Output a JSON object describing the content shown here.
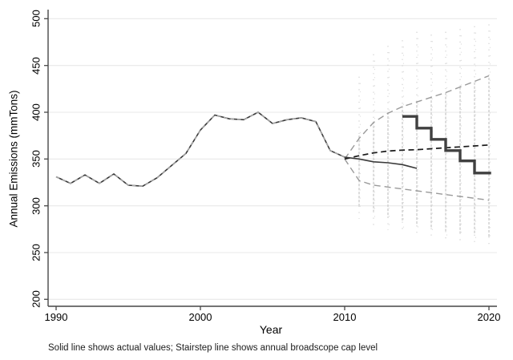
{
  "chart_data": {
    "type": "line",
    "title": "",
    "xlabel": "Year",
    "ylabel": "Annual Emissions (mmTons)",
    "caption": "Solid line shows actual values; Stairstep line shows annual broadscope cap level",
    "x_ticks": [
      1990,
      2000,
      2010,
      2020
    ],
    "y_ticks": [
      200,
      250,
      300,
      350,
      400,
      450,
      500
    ],
    "xlim": [
      1989.45,
      2020.55
    ],
    "ylim": [
      200,
      500
    ],
    "grid": "horizontal-only",
    "legend": "none (described in caption)",
    "series": [
      {
        "name": "actual_emissions",
        "style": "solid_black_with_gray_dash_overlay_through_2010",
        "x": [
          1990,
          1991,
          1992,
          1993,
          1994,
          1995,
          1996,
          1997,
          1998,
          1999,
          2000,
          2001,
          2002,
          2003,
          2004,
          2005,
          2006,
          2007,
          2008,
          2009,
          2010,
          2011,
          2012,
          2013,
          2014,
          2015
        ],
        "y": [
          331,
          324,
          333,
          324,
          334,
          322,
          321,
          330,
          343,
          356,
          381,
          397,
          393,
          392,
          400,
          388,
          392,
          394,
          390,
          359,
          352,
          350,
          347,
          346,
          344,
          340
        ]
      },
      {
        "name": "forecast_central",
        "style": "dashed_black",
        "x": [
          2010,
          2011,
          2012,
          2013,
          2014,
          2015,
          2016,
          2017,
          2018,
          2019,
          2020
        ],
        "y": [
          350,
          353.5,
          356.5,
          358.5,
          359.5,
          360,
          361,
          362,
          363,
          364,
          365
        ]
      },
      {
        "name": "forecast_upper_bound",
        "style": "dashed_gray",
        "x": [
          2010,
          2011,
          2012,
          2013,
          2014,
          2015,
          2016,
          2017,
          2018,
          2019,
          2020
        ],
        "y": [
          350,
          372,
          389,
          399,
          406,
          411,
          416,
          421,
          427,
          433,
          439
        ]
      },
      {
        "name": "forecast_lower_bound",
        "style": "dashed_gray",
        "x": [
          2010,
          2011,
          2012,
          2013,
          2014,
          2015,
          2016,
          2017,
          2018,
          2019,
          2020
        ],
        "y": [
          350,
          327,
          322,
          320,
          318,
          316,
          314,
          312,
          310,
          308,
          306
        ]
      },
      {
        "name": "broadscope_cap_stairstep",
        "style": "thick_step_dark",
        "step_years": [
          2014,
          2015,
          2016,
          2017,
          2018,
          2019
        ],
        "step_values": [
          395.5,
          383,
          371,
          359,
          348,
          335
        ],
        "end_x": 2020.15
      }
    ],
    "simulation_strips": {
      "years": [
        2011,
        2012,
        2013,
        2014,
        2015,
        2016,
        2017,
        2018,
        2019,
        2020
      ],
      "tail_top": [
        438,
        462,
        471,
        477,
        486,
        483,
        486,
        489,
        492,
        494
      ],
      "core_top": [
        375,
        390,
        400,
        407,
        412,
        417,
        421,
        427,
        432,
        437
      ],
      "core_bottom": [
        300,
        294,
        288,
        283,
        279,
        276,
        273,
        271,
        269,
        267
      ],
      "tail_bottom": [
        286,
        279,
        274,
        270,
        267,
        265,
        263,
        261,
        260,
        258
      ]
    },
    "colors": {
      "line_dark": "#3a3a3a",
      "history_overlay_gray": "#a9a9a9",
      "dashed_gray": "#9a9a9a",
      "dashed_black": "#1a1a1a",
      "cap_line": "#404040",
      "dots": "#cecece",
      "dots_faint": "#dcdcdc",
      "grid": "#e8e8e8",
      "axis": "#474747",
      "text": "#000000"
    }
  }
}
